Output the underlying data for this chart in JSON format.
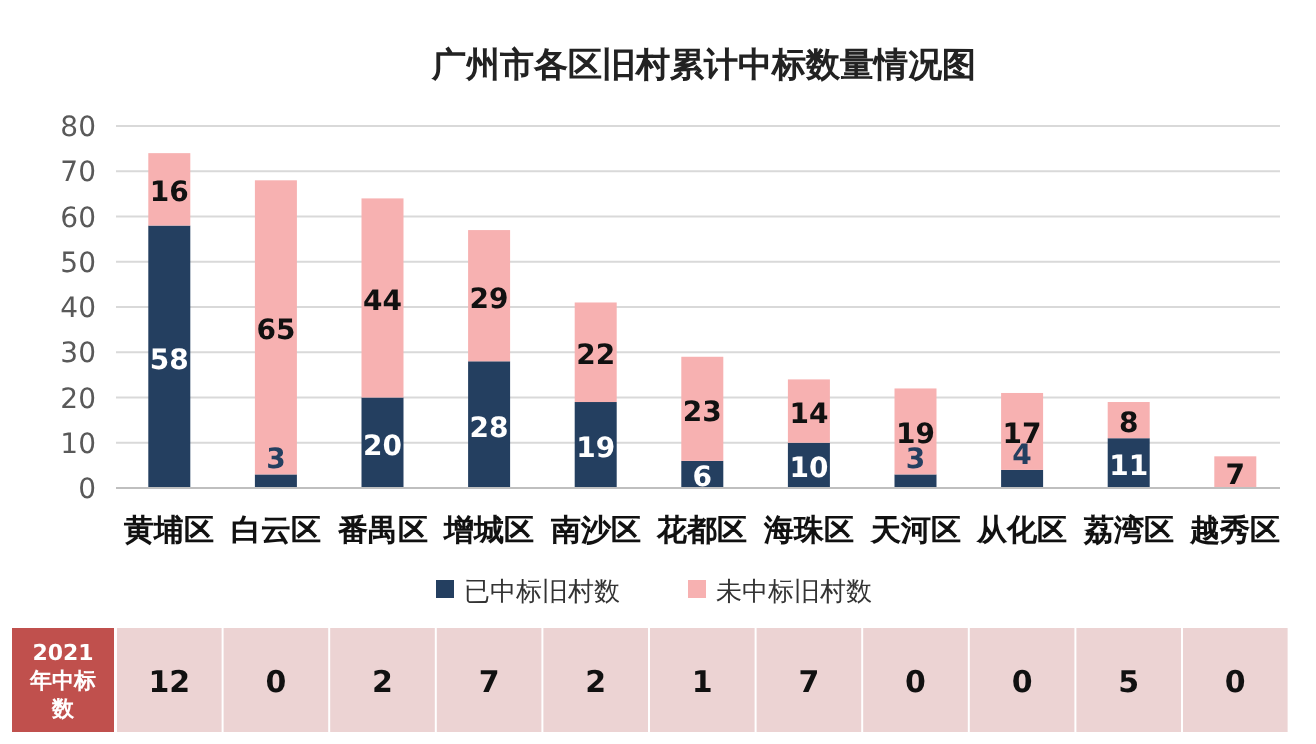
{
  "chart_data": [
    {
      "type": "bar",
      "title": "广州市各区旧村累计中标数量情况图",
      "stacked": true,
      "categories": [
        "黄埔区",
        "白云区",
        "番禺区",
        "增城区",
        "南沙区",
        "花都区",
        "海珠区",
        "天河区",
        "从化区",
        "荔湾区",
        "越秀区"
      ],
      "series": [
        {
          "name": "已中标旧村数",
          "color": "#243f60",
          "values": [
            58,
            3,
            20,
            28,
            19,
            6,
            10,
            3,
            4,
            11,
            0
          ],
          "value_labels": [
            "58",
            "3",
            "20",
            "28",
            "19",
            "6",
            "10",
            "3",
            "4",
            "11",
            null
          ]
        },
        {
          "name": "未中标旧村数",
          "color": "#f7b1b1",
          "values": [
            16,
            65,
            44,
            29,
            22,
            23,
            14,
            19,
            17,
            8,
            7
          ],
          "value_labels": [
            "16",
            "65",
            "44",
            "29",
            "22",
            "23",
            "14",
            "19",
            "17",
            "8",
            "7"
          ]
        }
      ],
      "ylim": [
        0,
        80
      ],
      "yticks": [
        0,
        10,
        20,
        30,
        40,
        50,
        60,
        70,
        80
      ],
      "grid": "y",
      "legend": "bottom"
    },
    {
      "type": "other",
      "categories": [
        null,
        null,
        null,
        null,
        null,
        null,
        null,
        null,
        null,
        null,
        null
      ],
      "ylabel": "2021年中标数",
      "values": [
        12,
        0,
        2,
        7,
        2,
        1,
        7,
        0,
        0,
        5,
        0
      ],
      "data_labels": true,
      "color": "#c0504d",
      "colors": [
        "#ecd3d3",
        "#ecd3d3",
        "#ecd3d3",
        "#ecd3d3",
        "#ecd3d3",
        "#ecd3d3",
        "#ecd3d3",
        "#ecd3d3",
        "#ecd3d3",
        "#ecd3d3",
        "#ecd3d3"
      ]
    }
  ]
}
